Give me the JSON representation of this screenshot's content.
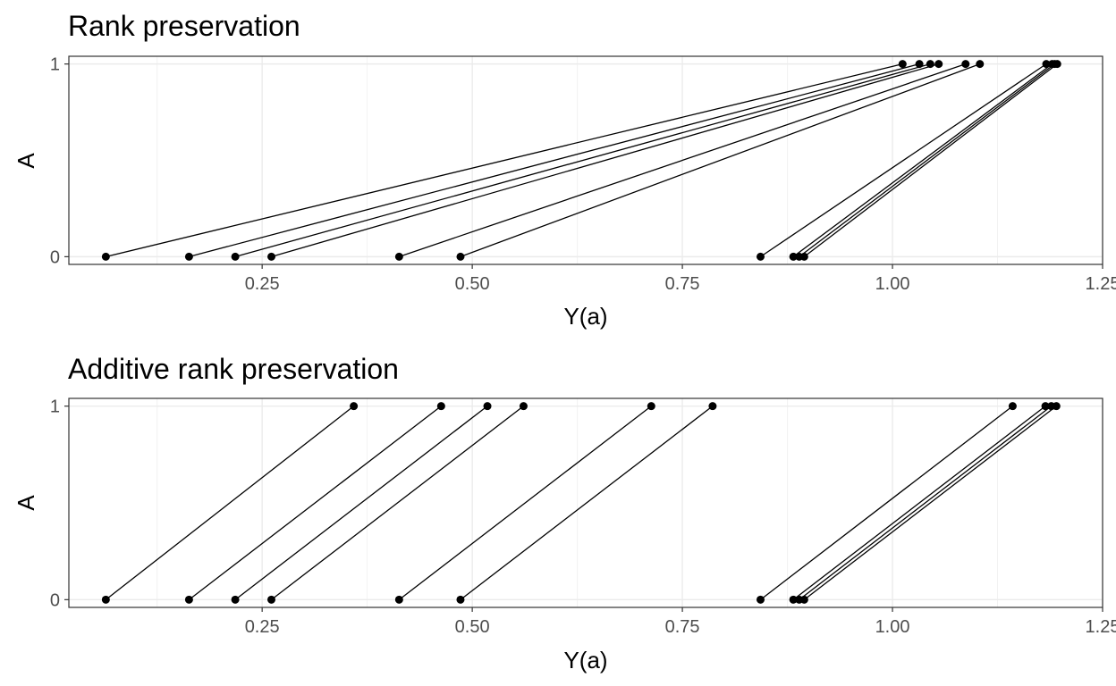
{
  "chart_data": [
    {
      "type": "line",
      "title": "Rank preservation",
      "xlabel": "Y(a)",
      "ylabel": "A",
      "xlim": [
        0.02,
        1.25
      ],
      "ylim": [
        -0.04,
        1.04
      ],
      "x_ticks": [
        "0.25",
        "0.50",
        "0.75",
        "1.00",
        "1.25"
      ],
      "y_ticks": [
        "0",
        "1"
      ],
      "grid": true,
      "segments": [
        {
          "x0": 0.064,
          "y0": 0,
          "x1": 1.012,
          "y1": 1
        },
        {
          "x0": 0.163,
          "y0": 0,
          "x1": 1.032,
          "y1": 1
        },
        {
          "x0": 0.218,
          "y0": 0,
          "x1": 1.045,
          "y1": 1
        },
        {
          "x0": 0.261,
          "y0": 0,
          "x1": 1.055,
          "y1": 1
        },
        {
          "x0": 0.413,
          "y0": 0,
          "x1": 1.087,
          "y1": 1
        },
        {
          "x0": 0.486,
          "y0": 0,
          "x1": 1.104,
          "y1": 1
        },
        {
          "x0": 0.843,
          "y0": 0,
          "x1": 1.183,
          "y1": 1
        },
        {
          "x0": 0.882,
          "y0": 0,
          "x1": 1.19,
          "y1": 1
        },
        {
          "x0": 0.889,
          "y0": 0,
          "x1": 1.193,
          "y1": 1
        },
        {
          "x0": 0.895,
          "y0": 0,
          "x1": 1.196,
          "y1": 1
        }
      ]
    },
    {
      "type": "line",
      "title": "Additive rank preservation",
      "xlabel": "Y(a)",
      "ylabel": "A",
      "xlim": [
        0.02,
        1.25
      ],
      "ylim": [
        -0.04,
        1.04
      ],
      "x_ticks": [
        "0.25",
        "0.50",
        "0.75",
        "1.00",
        "1.25"
      ],
      "y_ticks": [
        "0",
        "1"
      ],
      "grid": true,
      "segments": [
        {
          "x0": 0.064,
          "y0": 0,
          "x1": 0.359,
          "y1": 1
        },
        {
          "x0": 0.163,
          "y0": 0,
          "x1": 0.463,
          "y1": 1
        },
        {
          "x0": 0.218,
          "y0": 0,
          "x1": 0.518,
          "y1": 1
        },
        {
          "x0": 0.261,
          "y0": 0,
          "x1": 0.561,
          "y1": 1
        },
        {
          "x0": 0.413,
          "y0": 0,
          "x1": 0.713,
          "y1": 1
        },
        {
          "x0": 0.486,
          "y0": 0,
          "x1": 0.786,
          "y1": 1
        },
        {
          "x0": 0.843,
          "y0": 0,
          "x1": 1.143,
          "y1": 1
        },
        {
          "x0": 0.882,
          "y0": 0,
          "x1": 1.182,
          "y1": 1
        },
        {
          "x0": 0.889,
          "y0": 0,
          "x1": 1.189,
          "y1": 1
        },
        {
          "x0": 0.895,
          "y0": 0,
          "x1": 1.195,
          "y1": 1
        }
      ]
    }
  ]
}
